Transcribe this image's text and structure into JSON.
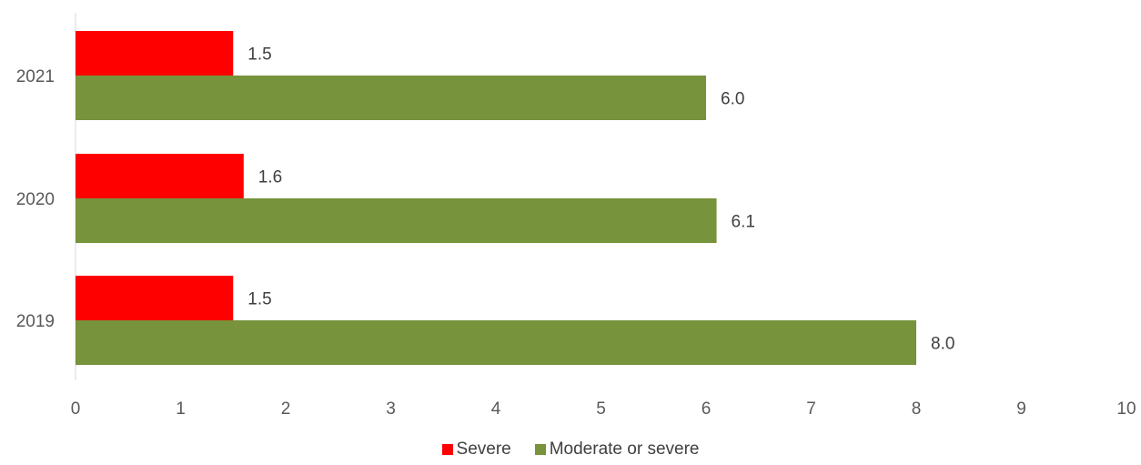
{
  "chart_data": {
    "type": "bar",
    "orientation": "horizontal",
    "title": "",
    "xlabel": "",
    "ylabel": "",
    "categories": [
      "2019",
      "2020",
      "2021"
    ],
    "series": [
      {
        "name": "Severe",
        "color": "#FF0000",
        "values": [
          1.5,
          1.6,
          1.5
        ],
        "labels": [
          "1.5",
          "1.6",
          "1.5"
        ]
      },
      {
        "name": "Moderate or severe",
        "color": "#77933C",
        "values": [
          8.0,
          6.1,
          6.0
        ],
        "labels": [
          "8.0",
          "6.1",
          "6.0"
        ]
      }
    ],
    "xlim": [
      0,
      10
    ],
    "xticks": [
      "0",
      "1",
      "2",
      "3",
      "4",
      "5",
      "6",
      "7",
      "8",
      "9",
      "10"
    ],
    "grid": false,
    "legend_position": "bottom"
  }
}
